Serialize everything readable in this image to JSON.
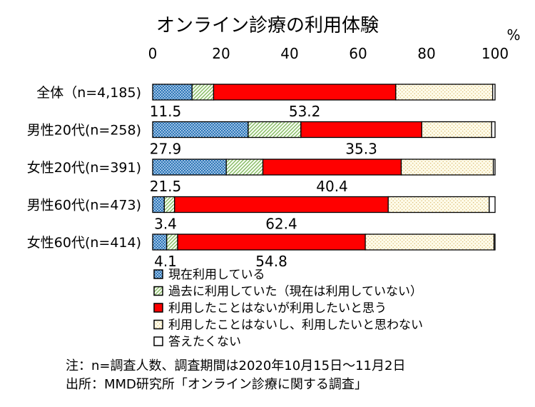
{
  "chart_data": {
    "type": "bar",
    "orientation": "horizontal",
    "stacked": true,
    "title": "オンライン診療の利用体験",
    "unit": "%",
    "xlim": [
      0,
      100
    ],
    "x_ticks": [
      "0",
      "20",
      "40",
      "60",
      "80",
      "100"
    ],
    "grid": false,
    "legend_position": "bottom-left",
    "categories": [
      "全体（n=4,185)",
      "男性20代(n=258)",
      "女性20代(n=391)",
      "男性60代(n=473)",
      "女性60代(n=414)"
    ],
    "series": [
      {
        "name": "現在利用している",
        "values": [
          11.5,
          27.9,
          21.5,
          3.4,
          4.1
        ],
        "color": "#5b9bd5",
        "pattern": "dots-blue",
        "labels": [
          "11.5",
          "27.9",
          "21.5",
          "3.4",
          "4.1"
        ]
      },
      {
        "name": "過去に利用していた（現在は利用していない）",
        "values": [
          6.3,
          15.4,
          10.7,
          3.0,
          3.2
        ],
        "color": "#a9d18e",
        "pattern": "hatch-green"
      },
      {
        "name": "利用したことはないが利用したいと思う",
        "values": [
          53.2,
          35.3,
          40.4,
          62.4,
          54.8
        ],
        "color": "#ff0000",
        "pattern": "solid",
        "labels": [
          "53.2",
          "35.3",
          "40.4",
          "62.4",
          "54.8"
        ]
      },
      {
        "name": "利用したことはないし、利用したいと思わない",
        "values": [
          28.3,
          20.4,
          26.9,
          29.5,
          37.6
        ],
        "color": "#f2e6b0",
        "pattern": "dots-beige"
      },
      {
        "name": "答えたくない",
        "values": [
          0.7,
          1.0,
          0.5,
          1.7,
          0.3
        ],
        "color": "#ffffff",
        "pattern": "none"
      }
    ]
  },
  "notes": {
    "note1": "注：n=調査人数、調査期間は2020年10月15日～11月2日",
    "note2": "出所：MMD研究所「オンライン診療に関する調査」"
  }
}
